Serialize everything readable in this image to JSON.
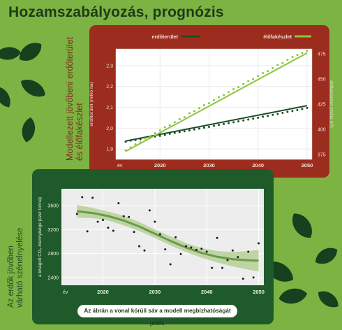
{
  "title": "Hozamszabályozás, prognózis",
  "side_label_top": [
    "Modellezett jövőbeni erdőterület",
    "és élőfakészlet"
  ],
  "side_label_bottom": [
    "Az erdők jövőben",
    "várható szénelnyelése"
  ],
  "note": "Az ábrán a vonal körüli sáv a modell megbízhatóságát jelöli.",
  "colors": {
    "background": "#7cb342",
    "red_panel": "#9b2c1e",
    "green_panel": "#1e5a2a",
    "series_area": "#1e4d26",
    "series_stock": "#8dc63f",
    "trend": "#6a9a4c",
    "band": "#b6cf95"
  },
  "chart_data": [
    {
      "type": "line",
      "x_axis_label": "év",
      "xlim": [
        2011,
        2051
      ],
      "xticks": [
        2020,
        2030,
        2040,
        2050
      ],
      "ylabel": "erdőterület (millió ha)",
      "ylim": [
        1.85,
        2.38
      ],
      "yticks": [
        1.9,
        2.0,
        2.1,
        2.2,
        2.3
      ],
      "y2label": "élőfakészlet (millió m³)",
      "y2lim": [
        370,
        480
      ],
      "y2ticks": [
        375,
        400,
        425,
        450,
        475
      ],
      "series": [
        {
          "name": "erdőterület",
          "axis": "left",
          "trend": [
            [
              2013,
              1.938
            ],
            [
              2050,
              2.108
            ]
          ],
          "points": [
            [
              2013,
              1.935
            ],
            [
              2014,
              1.94
            ],
            [
              2015,
              1.943
            ],
            [
              2016,
              1.947
            ],
            [
              2017,
              1.951
            ],
            [
              2018,
              1.955
            ],
            [
              2019,
              1.96
            ],
            [
              2020,
              1.963
            ],
            [
              2021,
              1.968
            ],
            [
              2022,
              1.973
            ],
            [
              2023,
              1.977
            ],
            [
              2024,
              1.981
            ],
            [
              2025,
              1.985
            ],
            [
              2026,
              1.989
            ],
            [
              2027,
              1.994
            ],
            [
              2028,
              1.998
            ],
            [
              2029,
              2.002
            ],
            [
              2030,
              2.006
            ],
            [
              2031,
              2.011
            ],
            [
              2032,
              2.015
            ],
            [
              2033,
              2.02
            ],
            [
              2034,
              2.024
            ],
            [
              2035,
              2.028
            ],
            [
              2036,
              2.033
            ],
            [
              2037,
              2.037
            ],
            [
              2038,
              2.041
            ],
            [
              2039,
              2.046
            ],
            [
              2040,
              2.05
            ],
            [
              2041,
              2.055
            ],
            [
              2042,
              2.059
            ],
            [
              2043,
              2.064
            ],
            [
              2044,
              2.068
            ],
            [
              2045,
              2.073
            ],
            [
              2046,
              2.078
            ],
            [
              2047,
              2.082
            ],
            [
              2048,
              2.087
            ],
            [
              2049,
              2.092
            ],
            [
              2050,
              2.097
            ]
          ]
        },
        {
          "name": "élőfakészlet",
          "axis": "right",
          "trend": [
            [
              2013,
              378
            ],
            [
              2050,
              476
            ]
          ],
          "points": [
            [
              2013,
              379
            ],
            [
              2014,
              382
            ],
            [
              2015,
              385
            ],
            [
              2016,
              387
            ],
            [
              2017,
              391
            ],
            [
              2018,
              393
            ],
            [
              2019,
              396
            ],
            [
              2020,
              399
            ],
            [
              2021,
              402
            ],
            [
              2022,
              404
            ],
            [
              2023,
              407
            ],
            [
              2024,
              410
            ],
            [
              2025,
              412
            ],
            [
              2026,
              416
            ],
            [
              2027,
              418
            ],
            [
              2028,
              421
            ],
            [
              2029,
              424
            ],
            [
              2030,
              426
            ],
            [
              2031,
              429
            ],
            [
              2032,
              432
            ],
            [
              2033,
              434
            ],
            [
              2034,
              437
            ],
            [
              2035,
              440
            ],
            [
              2036,
              442
            ],
            [
              2037,
              445
            ],
            [
              2038,
              448
            ],
            [
              2039,
              450
            ],
            [
              2040,
              453
            ],
            [
              2041,
              456
            ],
            [
              2042,
              458
            ],
            [
              2043,
              461
            ],
            [
              2044,
              464
            ],
            [
              2045,
              466
            ],
            [
              2046,
              469
            ],
            [
              2047,
              472
            ],
            [
              2048,
              474
            ],
            [
              2049,
              476
            ],
            [
              2050,
              478
            ]
          ]
        }
      ]
    },
    {
      "type": "scatter",
      "x_axis_label": "év",
      "xlim": [
        2012,
        2051
      ],
      "xticks": [
        2020,
        2030,
        2040,
        2050
      ],
      "ylabel": "a kivágott CO₂-mennyisége (ezer tonna)",
      "ylim": [
        2270,
        3880
      ],
      "yticks": [
        2400,
        2800,
        3200,
        3600
      ],
      "points": [
        [
          2015,
          3460
        ],
        [
          2016,
          3740
        ],
        [
          2017,
          3170
        ],
        [
          2018,
          3730
        ],
        [
          2019,
          3330
        ],
        [
          2020,
          3360
        ],
        [
          2021,
          3230
        ],
        [
          2022,
          3180
        ],
        [
          2023,
          3640
        ],
        [
          2024,
          3420
        ],
        [
          2025,
          3410
        ],
        [
          2026,
          3160
        ],
        [
          2027,
          2920
        ],
        [
          2028,
          2850
        ],
        [
          2029,
          3520
        ],
        [
          2030,
          3330
        ],
        [
          2031,
          3120
        ],
        [
          2032,
          2870
        ],
        [
          2033,
          2620
        ],
        [
          2034,
          3070
        ],
        [
          2035,
          2790
        ],
        [
          2036,
          2920
        ],
        [
          2037,
          2900
        ],
        [
          2038,
          2860
        ],
        [
          2039,
          2880
        ],
        [
          2040,
          2830
        ],
        [
          2041,
          2560
        ],
        [
          2042,
          3060
        ],
        [
          2043,
          2560
        ],
        [
          2044,
          2690
        ],
        [
          2045,
          2850
        ],
        [
          2046,
          2740
        ],
        [
          2047,
          2380
        ],
        [
          2048,
          2830
        ],
        [
          2049,
          2400
        ],
        [
          2050,
          2970
        ]
      ],
      "trend": [
        [
          2015,
          3505
        ],
        [
          2018,
          3475
        ],
        [
          2021,
          3425
        ],
        [
          2024,
          3350
        ],
        [
          2027,
          3250
        ],
        [
          2030,
          3130
        ],
        [
          2033,
          3010
        ],
        [
          2036,
          2900
        ],
        [
          2039,
          2810
        ],
        [
          2042,
          2745
        ],
        [
          2045,
          2705
        ],
        [
          2048,
          2685
        ],
        [
          2050,
          2680
        ]
      ],
      "band_upper": [
        [
          2015,
          3610
        ],
        [
          2018,
          3560
        ],
        [
          2021,
          3500
        ],
        [
          2024,
          3430
        ],
        [
          2027,
          3325
        ],
        [
          2030,
          3200
        ],
        [
          2033,
          3085
        ],
        [
          2036,
          2975
        ],
        [
          2039,
          2890
        ],
        [
          2042,
          2840
        ],
        [
          2045,
          2825
        ],
        [
          2048,
          2840
        ],
        [
          2050,
          2860
        ]
      ],
      "band_lower": [
        [
          2015,
          3400
        ],
        [
          2018,
          3390
        ],
        [
          2021,
          3350
        ],
        [
          2024,
          3270
        ],
        [
          2027,
          3175
        ],
        [
          2030,
          3060
        ],
        [
          2033,
          2935
        ],
        [
          2036,
          2825
        ],
        [
          2039,
          2730
        ],
        [
          2042,
          2650
        ],
        [
          2045,
          2585
        ],
        [
          2048,
          2530
        ],
        [
          2050,
          2500
        ]
      ]
    }
  ]
}
